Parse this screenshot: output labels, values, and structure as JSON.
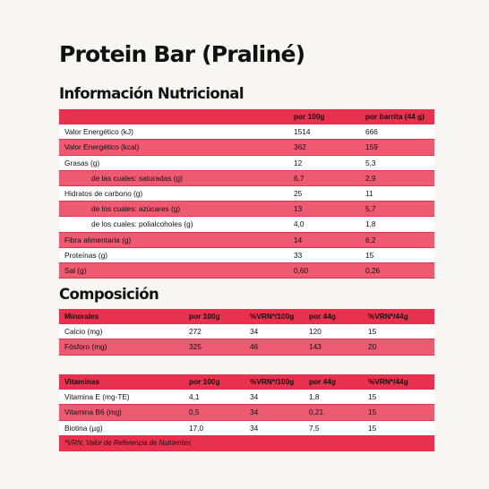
{
  "title": "Protein Bar (Praliné)",
  "nutrition": {
    "heading": "Información Nutricional",
    "columns": [
      "",
      "por 100g",
      "por barrita (44 g)"
    ],
    "rows": [
      {
        "label": "Valor Energético (kJ)",
        "per100": "1514",
        "perBar": "666",
        "indent": false
      },
      {
        "label": "Valor Energético (kcal)",
        "per100": "362",
        "perBar": "159",
        "indent": false
      },
      {
        "label": "Grasas (g)",
        "per100": "12",
        "perBar": "5,3",
        "indent": false
      },
      {
        "label": "de las cuales: saturadas (g)",
        "per100": "6,7",
        "perBar": "2,9",
        "indent": true
      },
      {
        "label": "Hidratos de carbono (g)",
        "per100": "25",
        "perBar": "11",
        "indent": false
      },
      {
        "label": "de los cuales: azúcares (g)",
        "per100": "13",
        "perBar": "5,7",
        "indent": true
      },
      {
        "label": "de los cuales: polialcoholes (g)",
        "per100": "4,0",
        "perBar": "1,8",
        "indent": true
      },
      {
        "label": "Fibra alimentaria (g)",
        "per100": "14",
        "perBar": "6,2",
        "indent": false
      },
      {
        "label": "Proteínas (g)",
        "per100": "33",
        "perBar": "15",
        "indent": false
      },
      {
        "label": "Sal (g)",
        "per100": "0,60",
        "perBar": "0,26",
        "indent": false
      }
    ]
  },
  "composition": {
    "heading": "Composición",
    "minerals": {
      "columns": [
        "Minerales",
        "por 100g",
        "%VRN*/100g",
        "por 44g",
        "%VRN*/44g"
      ],
      "rows": [
        [
          "Calcio (mg)",
          "272",
          "34",
          "120",
          "15"
        ],
        [
          "Fósforo (mg)",
          "325",
          "46",
          "143",
          "20"
        ]
      ]
    },
    "vitamins": {
      "columns": [
        "Vitaminas",
        "por 100g",
        "%VRN*/100g",
        "por 44g",
        "%VRN*/44g"
      ],
      "rows": [
        [
          "Vitamina E (mg-TE)",
          "4,1",
          "34",
          "1,8",
          "15"
        ],
        [
          "Vitamina B6 (mg)",
          "0,5",
          "34",
          "0,21",
          "15"
        ],
        [
          "Biotina (µg)",
          "17,0",
          "34",
          "7,5",
          "15"
        ]
      ],
      "footnote": "*VRN: Valor de Referencia de Nutrientes"
    }
  },
  "colors": {
    "accent": "#e8304f",
    "stripe": "#ee5a72",
    "background": "#f7f6f2"
  }
}
